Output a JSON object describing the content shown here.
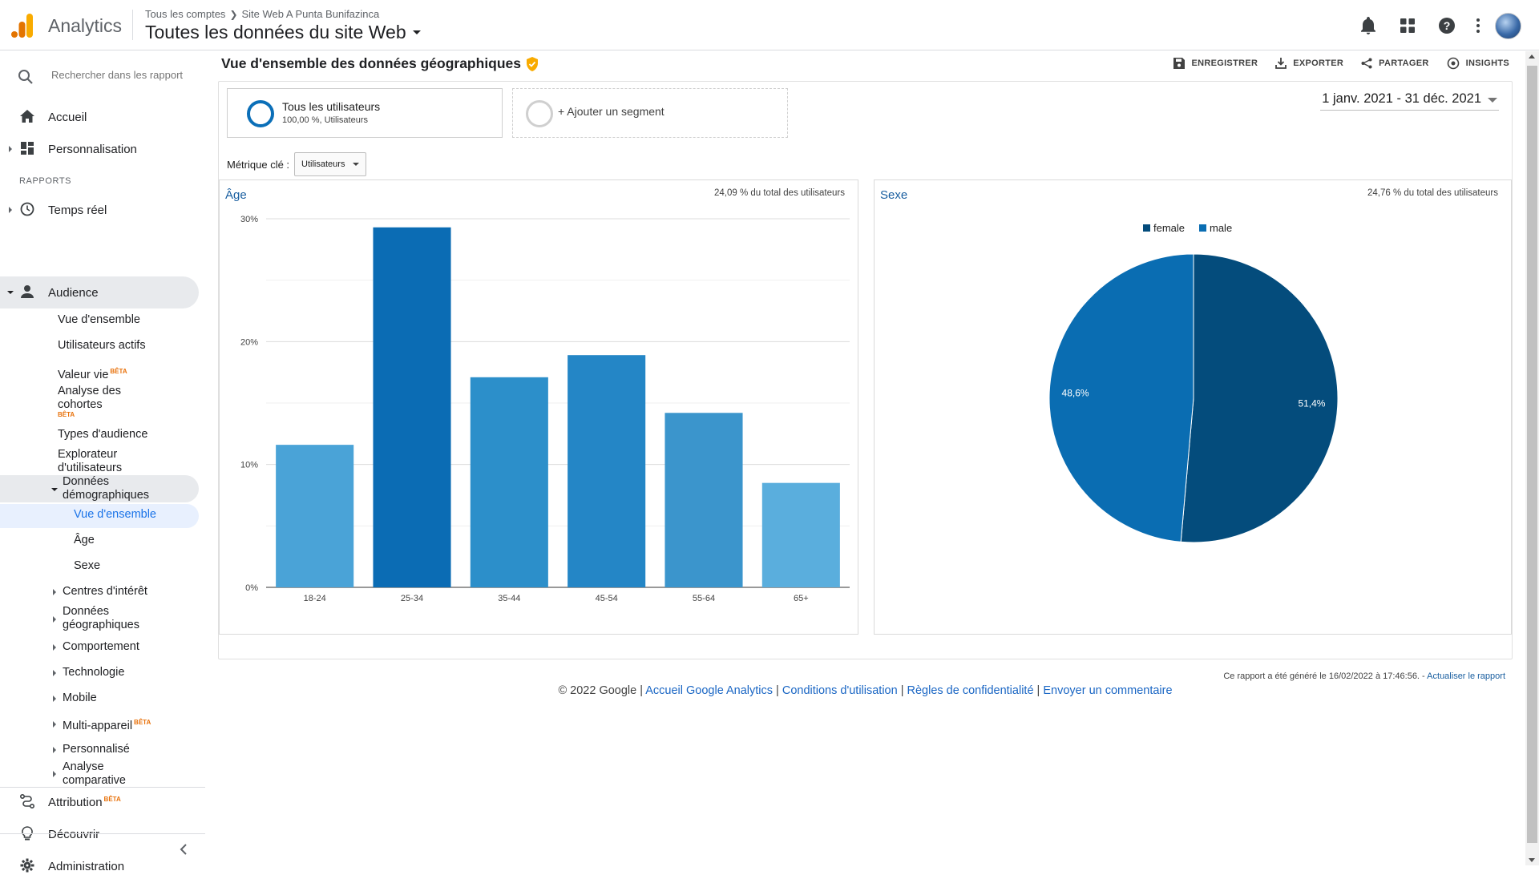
{
  "header": {
    "app_name": "Analytics",
    "breadcrumb": [
      "Tous les comptes",
      "Site Web A Punta Bunifazinca"
    ],
    "view_title": "Toutes les données du site Web"
  },
  "sidebar": {
    "search_placeholder": "Rechercher dans les rapport",
    "home": "Accueil",
    "customization": "Personnalisation",
    "reports_label": "RAPPORTS",
    "realtime": "Temps réel",
    "audience": "Audience",
    "audience_items": {
      "overview": "Vue d'ensemble",
      "active_users": "Utilisateurs actifs",
      "lifetime_value": "Valeur vie",
      "cohort_l1": "Analyse des",
      "cohort_l2": "cohortes",
      "audience_types": "Types d'audience",
      "user_explorer_l1": "Explorateur",
      "user_explorer_l2": "d'utilisateurs",
      "demographics_l1": "Données",
      "demographics_l2": "démographiques",
      "demo_overview": "Vue d'ensemble",
      "demo_age": "Âge",
      "demo_sex": "Sexe",
      "interests": "Centres d'intérêt",
      "geo_l1": "Données",
      "geo_l2": "géographiques",
      "behavior": "Comportement",
      "technology": "Technologie",
      "mobile": "Mobile",
      "cross_device": "Multi-appareil",
      "custom": "Personnalisé",
      "benchmark_l1": "Analyse",
      "benchmark_l2": "comparative"
    },
    "beta": "BÊTA",
    "attribution": "Attribution",
    "discover": "Découvrir",
    "admin": "Administration"
  },
  "main": {
    "page_title": "Vue d'ensemble des données géographiques",
    "actions": {
      "save": "ENREGISTRER",
      "export": "EXPORTER",
      "share": "PARTAGER",
      "insights": "INSIGHTS"
    },
    "segment": {
      "name": "Tous les utilisateurs",
      "sub": "100,00 %, Utilisateurs",
      "add": "+ Ajouter un segment"
    },
    "date_range": "1 janv. 2021 - 31 déc. 2021",
    "metric_label": "Métrique clé :",
    "metric_value": "Utilisateurs",
    "age_panel": {
      "title": "Âge",
      "note": "24,09 % du total des utilisateurs"
    },
    "sex_panel": {
      "title": "Sexe",
      "note": "24,76 % du total des utilisateurs"
    },
    "footnote": "Ce rapport a été généré le 16/02/2022 à 17:46:56. - ",
    "footnote_link": "Actualiser le rapport",
    "copyright": "© 2022 Google",
    "footer_links": [
      "Accueil Google Analytics",
      "Conditions d'utilisation",
      "Règles de confidentialité",
      "Envoyer un commentaire"
    ]
  },
  "chart_data": [
    {
      "type": "bar",
      "title": "Âge",
      "categories": [
        "18-24",
        "25-34",
        "35-44",
        "45-54",
        "55-64",
        "65+"
      ],
      "values": [
        11.6,
        29.3,
        17.1,
        18.9,
        14.2,
        8.5
      ],
      "colors": [
        "#4aa3d7",
        "#0b6cb4",
        "#2c8fca",
        "#2486c6",
        "#3b95cc",
        "#5aaedd"
      ],
      "yticks": [
        "0%",
        "10%",
        "20%",
        "30%"
      ],
      "ylim": [
        0,
        30
      ],
      "unit": "%"
    },
    {
      "type": "pie",
      "title": "Sexe",
      "labels": [
        "female",
        "male"
      ],
      "values": [
        51.4,
        48.6
      ],
      "value_labels": [
        "51,4%",
        "48,6%"
      ],
      "colors": [
        "#044c7c",
        "#0a6db2"
      ]
    }
  ]
}
